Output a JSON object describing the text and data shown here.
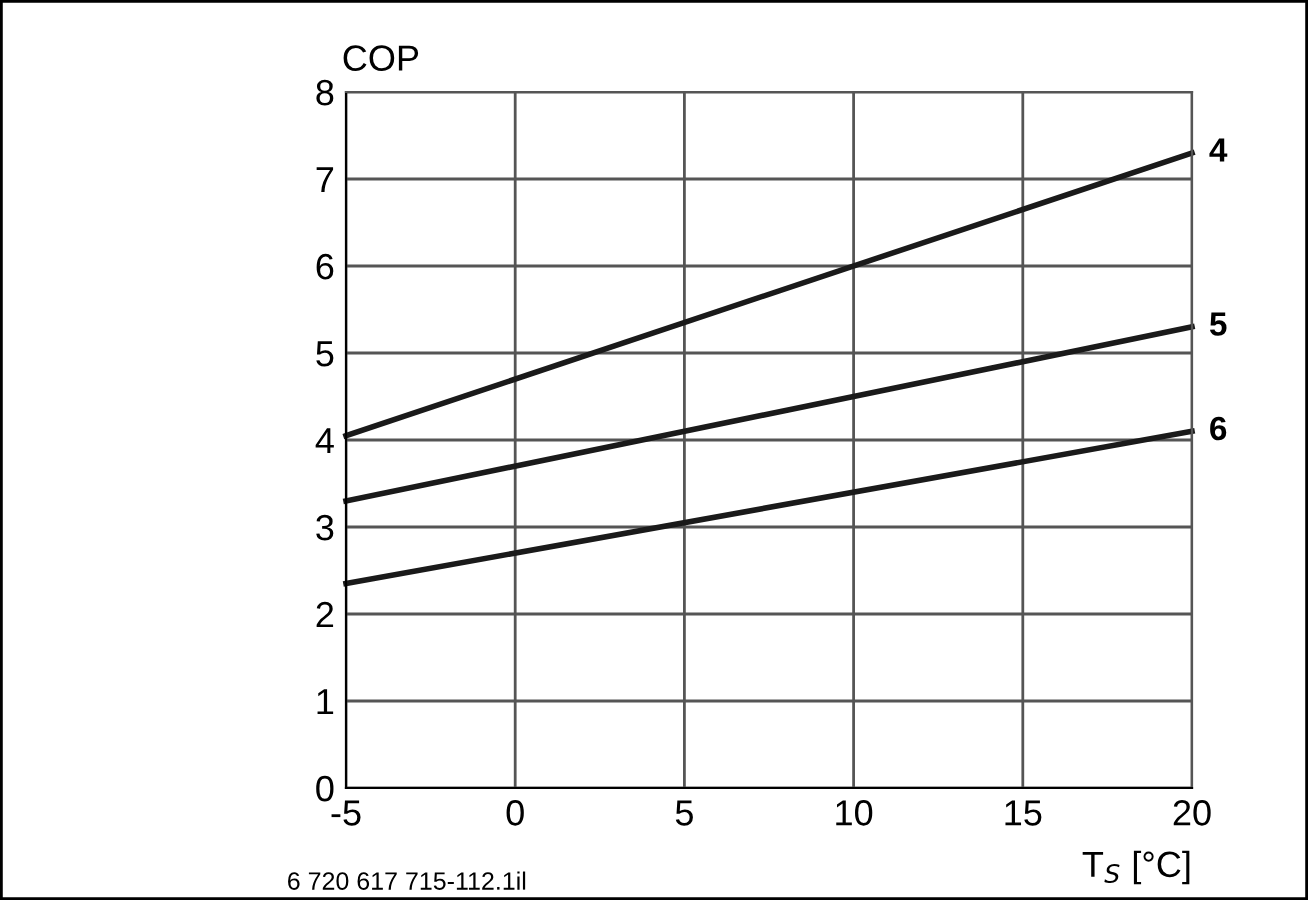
{
  "chart_data": {
    "type": "line",
    "xlabel": "T$_{S}$ [°C]",
    "ylabel": "COP",
    "annotations": [
      "6 720 617 715-112.1il"
    ],
    "x": [
      -5,
      20
    ],
    "series": [
      {
        "name": "4",
        "color": "#1a1a1a",
        "values": [
          4.05,
          7.3
        ]
      },
      {
        "name": "5",
        "color": "#1a1a1a",
        "values": [
          3.3,
          5.3
        ]
      },
      {
        "name": "6",
        "color": "#1a1a1a",
        "values": [
          2.35,
          4.1
        ]
      }
    ],
    "xlim": [
      -5,
      20
    ],
    "ylim": [
      0,
      8
    ],
    "xticks": [
      -5,
      0,
      5,
      10,
      15,
      20
    ],
    "yticks": [
      0,
      1,
      2,
      3,
      4,
      5,
      6,
      7,
      8
    ],
    "grid": true,
    "marker": "none",
    "line_style": "solid"
  }
}
